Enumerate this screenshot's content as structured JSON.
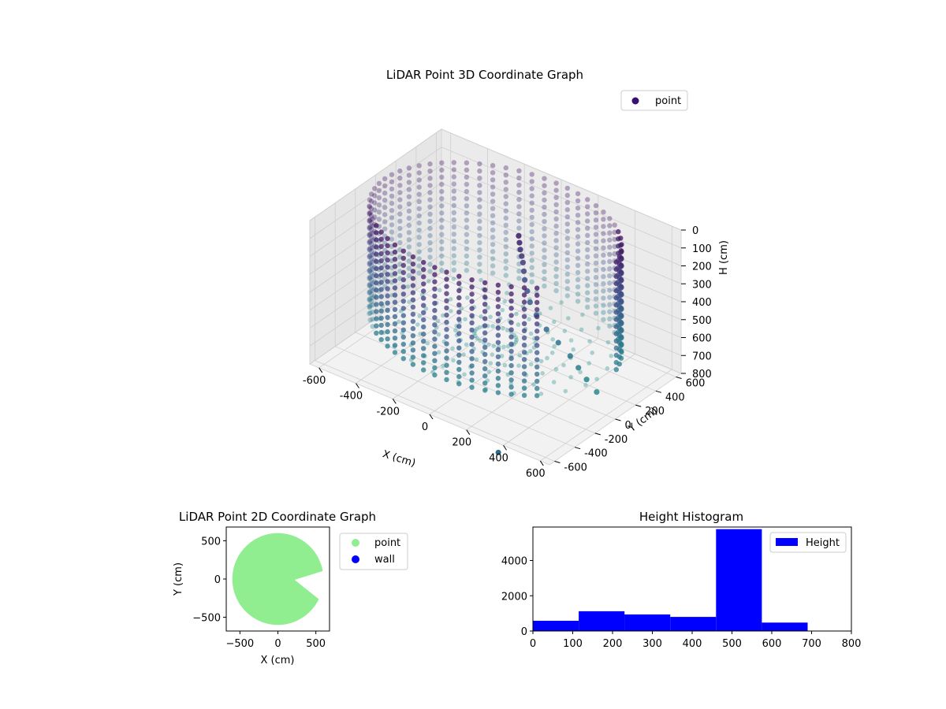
{
  "figure": {
    "background": "#ffffff"
  },
  "chart_data": [
    {
      "type": "scatter3d",
      "title": "LiDAR Point 3D Coordinate Graph",
      "xlabel": "X (cm)",
      "ylabel": "Y (cm)",
      "zlabel": "H (cm)",
      "xlim": [
        -650,
        650
      ],
      "ylim": [
        -650,
        650
      ],
      "zlim": [
        0,
        800
      ],
      "z_inverted": true,
      "xticks": [
        -600,
        -400,
        -200,
        0,
        200,
        400,
        600
      ],
      "yticks": [
        -600,
        -400,
        -200,
        0,
        200,
        400,
        600
      ],
      "zticks": [
        0,
        100,
        200,
        300,
        400,
        500,
        600,
        700,
        800
      ],
      "legend": {
        "entries": [
          "point"
        ],
        "placement": "upper-right"
      },
      "grid": true,
      "colormap": "viridis",
      "cylinder": {
        "radius": 600,
        "h_min": 0,
        "h_max": 620,
        "gap_angle_deg": [
          -40,
          10
        ]
      },
      "inner_points": [
        {
          "x": 60,
          "y": 120,
          "h": 80
        },
        {
          "x": 70,
          "y": 110,
          "h": 110
        },
        {
          "x": 80,
          "y": 100,
          "h": 140
        },
        {
          "x": 90,
          "y": 95,
          "h": 170
        },
        {
          "x": 100,
          "y": 90,
          "h": 200
        },
        {
          "x": 110,
          "y": 80,
          "h": 240
        },
        {
          "x": 120,
          "y": 70,
          "h": 280
        },
        {
          "x": 140,
          "y": 60,
          "h": 330
        },
        {
          "x": 160,
          "y": 50,
          "h": 380
        },
        {
          "x": 200,
          "y": 40,
          "h": 430
        },
        {
          "x": 260,
          "y": 30,
          "h": 480
        },
        {
          "x": 330,
          "y": 20,
          "h": 520
        },
        {
          "x": 400,
          "y": 10,
          "h": 560
        },
        {
          "x": 450,
          "y": 0,
          "h": 600
        },
        {
          "x": 500,
          "y": -10,
          "h": 640
        },
        {
          "x": 560,
          "y": -20,
          "h": 680
        }
      ],
      "outlier": {
        "x": 400,
        "y": -700,
        "h": 820
      }
    },
    {
      "type": "scatter",
      "title": "LiDAR Point 2D Coordinate Graph",
      "xlabel": "X (cm)",
      "ylabel": "Y (cm)",
      "xlim": [
        -680,
        680
      ],
      "ylim": [
        -680,
        680
      ],
      "xticks": [
        -500,
        0,
        500
      ],
      "yticks": [
        -500,
        0,
        500
      ],
      "series": [
        {
          "name": "point",
          "color": "#90ee90",
          "shape": "disc",
          "radius": 600,
          "gap_angle_deg": [
            -25,
            10
          ]
        },
        {
          "name": "wall",
          "color": "#0000ff",
          "points": []
        }
      ],
      "legend": {
        "placement": "outside-right"
      }
    },
    {
      "type": "histogram",
      "title": "Height Histogram",
      "xlim": [
        0,
        800
      ],
      "ylim": [
        0,
        5900
      ],
      "xticks": [
        0,
        100,
        200,
        300,
        400,
        500,
        600,
        700,
        800
      ],
      "yticks": [
        0,
        2000,
        4000
      ],
      "bins": [
        {
          "start": 0,
          "end": 115,
          "count": 580
        },
        {
          "start": 115,
          "end": 230,
          "count": 1120
        },
        {
          "start": 230,
          "end": 345,
          "count": 940
        },
        {
          "start": 345,
          "end": 460,
          "count": 800
        },
        {
          "start": 460,
          "end": 575,
          "count": 5780
        },
        {
          "start": 575,
          "end": 690,
          "count": 480
        }
      ],
      "series": [
        {
          "name": "Height",
          "color": "#0000ff"
        }
      ],
      "legend": {
        "placement": "upper-right"
      }
    }
  ]
}
